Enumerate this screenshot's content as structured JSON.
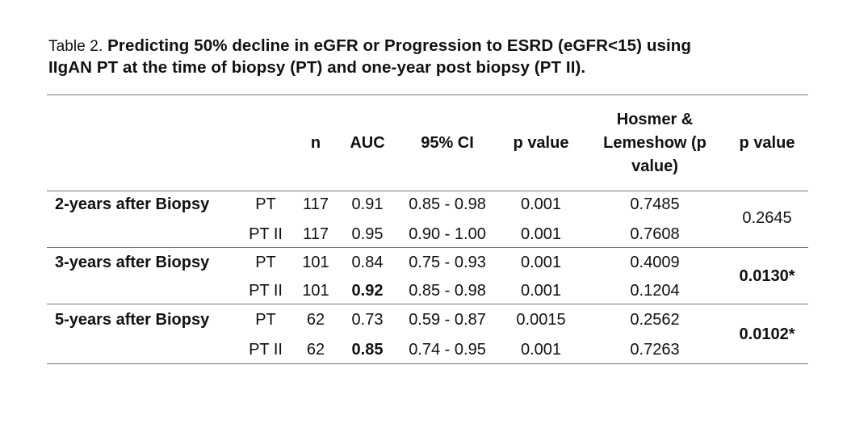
{
  "caption": {
    "label": "Table 2.",
    "title_line1": "Predicting 50% decline in eGFR or Progression to ESRD (eGFR<15) using",
    "title_line2": "IIgAN PT at the time of biopsy (PT) and one-year post biopsy (PT II)."
  },
  "headers": {
    "n": "n",
    "auc": "AUC",
    "ci": "95% CI",
    "p": "p value",
    "hl_line1": "Hosmer &",
    "hl_line2": "Lemeshow (p",
    "hl_line3": "value)",
    "p2": "p value"
  },
  "groups": [
    {
      "label": "2-years after Biopsy",
      "p_value": "0.2645",
      "p_value_bold": false,
      "rows": [
        {
          "model": "PT",
          "n": "117",
          "auc": "0.91",
          "auc_bold": false,
          "ci": "0.85 - 0.98",
          "p": "0.001",
          "hl": "0.7485"
        },
        {
          "model": "PT II",
          "n": "117",
          "auc": "0.95",
          "auc_bold": false,
          "ci": "0.90 - 1.00",
          "p": "0.001",
          "hl": "0.7608"
        }
      ]
    },
    {
      "label": "3-years after Biopsy",
      "p_value": "0.0130*",
      "p_value_bold": true,
      "rows": [
        {
          "model": "PT",
          "n": "101",
          "auc": "0.84",
          "auc_bold": false,
          "ci": "0.75 - 0.93",
          "p": "0.001",
          "hl": "0.4009"
        },
        {
          "model": "PT II",
          "n": "101",
          "auc": "0.92",
          "auc_bold": true,
          "ci": "0.85 - 0.98",
          "p": "0.001",
          "hl": "0.1204"
        }
      ]
    },
    {
      "label": "5-years after Biopsy",
      "p_value": "0.0102*",
      "p_value_bold": true,
      "rows": [
        {
          "model": "PT",
          "n": "62",
          "auc": "0.73",
          "auc_bold": false,
          "ci": "0.59 - 0.87",
          "p": "0.0015",
          "hl": "0.2562"
        },
        {
          "model": "PT II",
          "n": "62",
          "auc": "0.85",
          "auc_bold": true,
          "ci": "0.74 - 0.95",
          "p": "0.001",
          "hl": "0.7263"
        }
      ]
    }
  ]
}
